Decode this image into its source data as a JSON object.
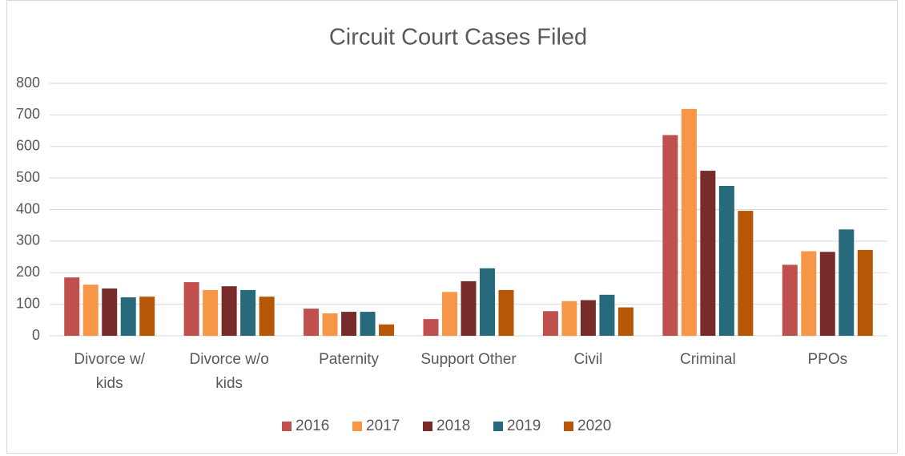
{
  "chart_data": {
    "type": "bar",
    "title": "Circuit Court Cases Filed",
    "categories": [
      "Divorce w/\nkids",
      "Divorce w/o\nkids",
      "Paternity",
      "Support Other",
      "Civil",
      "Criminal",
      "PPOs"
    ],
    "series": [
      {
        "name": "2016",
        "color": "#c0504d",
        "values": [
          185,
          170,
          86,
          53,
          78,
          636,
          225
        ]
      },
      {
        "name": "2017",
        "color": "#f79646",
        "values": [
          162,
          145,
          71,
          139,
          110,
          719,
          268
        ]
      },
      {
        "name": "2018",
        "color": "#772c2a",
        "values": [
          150,
          157,
          76,
          173,
          113,
          523,
          266
        ]
      },
      {
        "name": "2019",
        "color": "#276a7c",
        "values": [
          122,
          145,
          76,
          214,
          130,
          475,
          337
        ]
      },
      {
        "name": "2020",
        "color": "#b65708",
        "values": [
          124,
          124,
          36,
          145,
          90,
          396,
          272
        ]
      }
    ],
    "ylim": [
      0,
      800
    ],
    "yticks": [
      0,
      100,
      200,
      300,
      400,
      500,
      600,
      700,
      800
    ],
    "grid": true,
    "legend": "bottom"
  }
}
